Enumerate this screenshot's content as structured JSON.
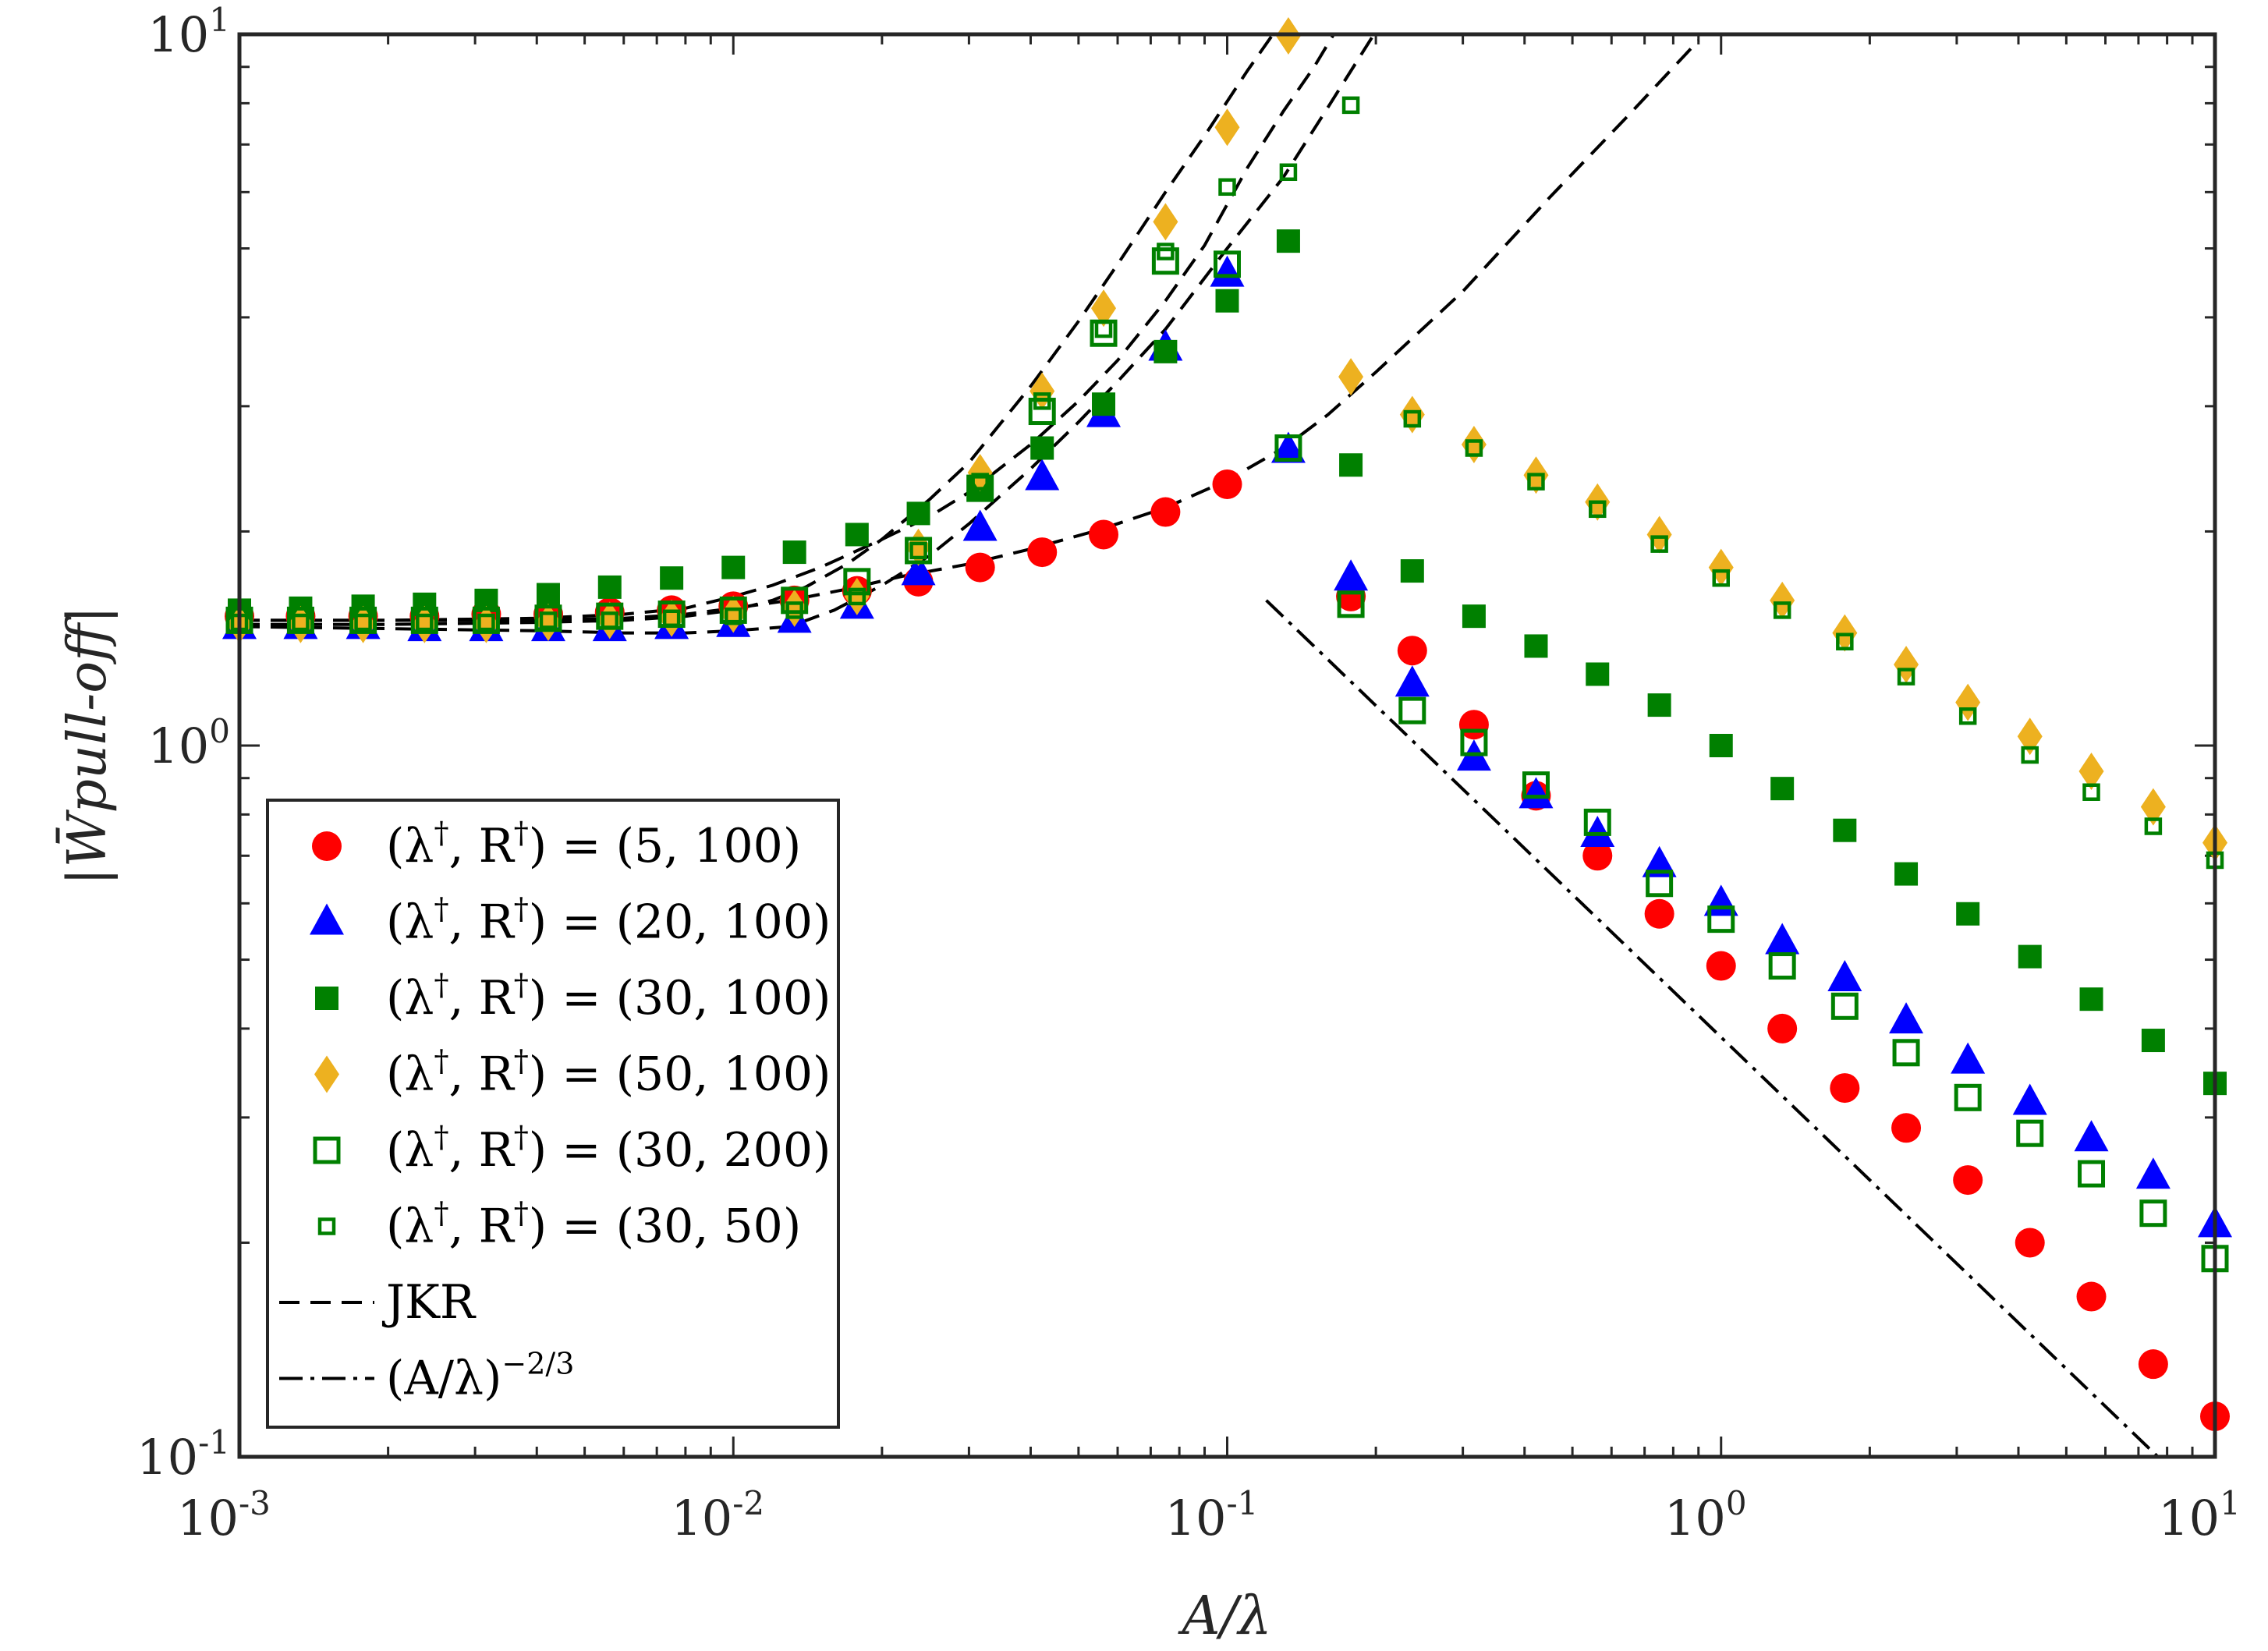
{
  "chart_data": {
    "type": "scatter",
    "title": "",
    "xlabel": "A/λ",
    "ylabel": "|W̄pull-off|",
    "xscale": "log",
    "yscale": "log",
    "xlim": [
      0.001,
      10
    ],
    "ylim": [
      0.1,
      10
    ],
    "grid": false,
    "legend_position": "bottom-left",
    "x_ticks": [
      {
        "value": 0.001,
        "base": "10",
        "exp": "-3"
      },
      {
        "value": 0.01,
        "base": "10",
        "exp": "-2"
      },
      {
        "value": 0.1,
        "base": "10",
        "exp": "-1"
      },
      {
        "value": 1,
        "base": "10",
        "exp": "0"
      },
      {
        "value": 10,
        "base": "10",
        "exp": "1"
      }
    ],
    "y_ticks": [
      {
        "value": 0.1,
        "base": "10",
        "exp": "-1"
      },
      {
        "value": 1,
        "base": "10",
        "exp": "0"
      },
      {
        "value": 10,
        "base": "10",
        "exp": "1"
      }
    ],
    "series": [
      {
        "name": "(λ†, R†) = (5, 100)",
        "label_pre": "(λ",
        "label_mid": ", R",
        "label_post": ") = (5, 100)",
        "marker": "circle",
        "color": "#ff0000",
        "x": [
          0.001,
          0.00133,
          0.00178,
          0.00237,
          0.00316,
          0.00422,
          0.00562,
          0.0075,
          0.01,
          0.0133,
          0.0178,
          0.0237,
          0.0316,
          0.0422,
          0.0562,
          0.075,
          0.1,
          0.178,
          0.237,
          0.316,
          0.422,
          0.562,
          0.75,
          1,
          1.33,
          1.78,
          2.37,
          3.16,
          4.22,
          5.62,
          7.5,
          10
        ],
        "y": [
          1.52,
          1.52,
          1.52,
          1.52,
          1.53,
          1.53,
          1.54,
          1.55,
          1.57,
          1.6,
          1.65,
          1.7,
          1.78,
          1.87,
          1.98,
          2.13,
          2.33,
          1.62,
          1.36,
          1.07,
          0.85,
          0.7,
          0.58,
          0.49,
          0.4,
          0.33,
          0.29,
          0.245,
          0.2,
          0.168,
          0.135,
          0.114
        ]
      },
      {
        "name": "(λ†, R†) = (20, 100)",
        "label_pre": "(λ",
        "label_mid": ", R",
        "label_post": ") = (20, 100)",
        "marker": "triangle",
        "color": "#0000ff",
        "x": [
          0.001,
          0.00133,
          0.00178,
          0.00237,
          0.00316,
          0.00422,
          0.00562,
          0.0075,
          0.01,
          0.0133,
          0.0178,
          0.0237,
          0.0316,
          0.0422,
          0.0562,
          0.075,
          0.1,
          0.133,
          0.178,
          0.237,
          0.316,
          0.422,
          0.562,
          0.75,
          1,
          1.33,
          1.78,
          2.37,
          3.16,
          4.22,
          5.62,
          7.5,
          10
        ],
        "y": [
          1.47,
          1.47,
          1.47,
          1.46,
          1.46,
          1.46,
          1.46,
          1.47,
          1.48,
          1.5,
          1.57,
          1.75,
          2.02,
          2.38,
          2.92,
          3.62,
          4.6,
          2.6,
          1.72,
          1.22,
          0.96,
          0.85,
          0.75,
          0.68,
          0.6,
          0.53,
          0.47,
          0.41,
          0.36,
          0.315,
          0.28,
          0.248,
          0.212
        ]
      },
      {
        "name": "(λ†, R†) = (30, 100)",
        "label_pre": "(λ",
        "label_mid": ", R",
        "label_post": ") = (30, 100)",
        "marker": "square",
        "color": "#008000",
        "x": [
          0.001,
          0.00133,
          0.00178,
          0.00237,
          0.00316,
          0.00422,
          0.00562,
          0.0075,
          0.01,
          0.0133,
          0.0178,
          0.0237,
          0.0316,
          0.0422,
          0.0562,
          0.075,
          0.1,
          0.133,
          0.178,
          0.237,
          0.316,
          0.422,
          0.562,
          0.75,
          1,
          1.33,
          1.78,
          2.37,
          3.16,
          4.22,
          5.62,
          7.5,
          10
        ],
        "y": [
          1.55,
          1.56,
          1.57,
          1.58,
          1.6,
          1.63,
          1.67,
          1.72,
          1.78,
          1.87,
          1.98,
          2.12,
          2.3,
          2.62,
          3.02,
          3.58,
          4.22,
          5.12,
          2.48,
          1.76,
          1.52,
          1.38,
          1.26,
          1.14,
          1.0,
          0.87,
          0.76,
          0.66,
          0.58,
          0.505,
          0.44,
          0.385,
          0.335
        ]
      },
      {
        "name": "(λ†, R†) = (50, 100)",
        "label_pre": "(λ",
        "label_mid": ", R",
        "label_post": ") = (50, 100)",
        "marker": "diamond",
        "color": "#edb120",
        "x": [
          0.001,
          0.00133,
          0.00178,
          0.00237,
          0.00316,
          0.00422,
          0.00562,
          0.0075,
          0.01,
          0.0133,
          0.0178,
          0.0237,
          0.0316,
          0.0422,
          0.0562,
          0.075,
          0.1,
          0.133,
          0.178,
          0.237,
          0.316,
          0.422,
          0.562,
          0.75,
          1,
          1.33,
          1.78,
          2.37,
          3.16,
          4.22,
          5.62,
          7.5,
          10
        ],
        "y": [
          1.48,
          1.48,
          1.48,
          1.48,
          1.48,
          1.49,
          1.5,
          1.51,
          1.53,
          1.56,
          1.62,
          1.9,
          2.42,
          3.15,
          4.12,
          5.45,
          7.4,
          9.95,
          3.3,
          2.92,
          2.65,
          2.4,
          2.2,
          1.98,
          1.78,
          1.6,
          1.44,
          1.3,
          1.15,
          1.03,
          0.92,
          0.82,
          0.73
        ]
      },
      {
        "name": "(λ†, R†) = (30, 200)",
        "label_pre": "(λ",
        "label_mid": ", R",
        "label_post": ") = (30, 200)",
        "marker": "open-square",
        "color": "#008000",
        "x": [
          0.001,
          0.00133,
          0.00178,
          0.00237,
          0.00316,
          0.00422,
          0.00562,
          0.0075,
          0.01,
          0.0133,
          0.0178,
          0.0237,
          0.0316,
          0.0422,
          0.0562,
          0.075,
          0.1,
          0.133,
          0.178,
          0.237,
          0.316,
          0.422,
          0.562,
          0.75,
          1,
          1.33,
          1.78,
          2.37,
          3.16,
          4.22,
          5.62,
          7.5,
          10
        ],
        "y": [
          1.5,
          1.5,
          1.5,
          1.5,
          1.5,
          1.51,
          1.52,
          1.53,
          1.55,
          1.6,
          1.7,
          1.88,
          2.3,
          2.95,
          3.8,
          4.8,
          4.75,
          2.62,
          1.58,
          1.12,
          1.01,
          0.88,
          0.78,
          0.64,
          0.57,
          0.49,
          0.43,
          0.37,
          0.32,
          0.285,
          0.25,
          0.22,
          0.19
        ]
      },
      {
        "name": "(λ†, R†) = (30, 50)",
        "label_pre": "(λ",
        "label_mid": ", R",
        "label_post": ") = (30, 50)",
        "marker": "small-open-square",
        "color": "#008000",
        "x": [
          0.001,
          0.00133,
          0.00178,
          0.00237,
          0.00316,
          0.00422,
          0.00562,
          0.0075,
          0.01,
          0.0133,
          0.0178,
          0.0237,
          0.0316,
          0.0422,
          0.0562,
          0.075,
          0.1,
          0.133,
          0.178,
          0.237,
          0.316,
          0.422,
          0.562,
          0.75,
          1,
          1.33,
          1.78,
          2.37,
          3.16,
          4.22,
          5.62,
          7.5,
          10
        ],
        "y": [
          1.49,
          1.49,
          1.49,
          1.49,
          1.49,
          1.5,
          1.5,
          1.51,
          1.52,
          1.55,
          1.62,
          1.88,
          2.35,
          3.05,
          3.85,
          4.95,
          6.1,
          6.4,
          7.95,
          2.88,
          2.62,
          2.35,
          2.15,
          1.92,
          1.72,
          1.55,
          1.4,
          1.25,
          1.1,
          0.97,
          0.86,
          0.77,
          0.69
        ]
      }
    ],
    "lines": [
      {
        "name": "JKR",
        "style": "dashed",
        "color": "#000000",
        "curves": [
          {
            "x": [
              0.001,
              0.002,
              0.004,
              0.006,
              0.008,
              0.01,
              0.013,
              0.017,
              0.022,
              0.03,
              0.04,
              0.055,
              0.075,
              0.1,
              0.13,
              0.16,
              0.2,
              0.3,
              0.45,
              0.65,
              0.9
            ],
            "y": [
              1.5,
              1.5,
              1.5,
              1.51,
              1.53,
              1.56,
              1.6,
              1.66,
              1.73,
              1.8,
              1.89,
              2.01,
              2.16,
              2.36,
              2.62,
              2.92,
              3.35,
              4.35,
              5.9,
              7.7,
              9.8
            ]
          },
          {
            "x": [
              0.001,
              0.002,
              0.004,
              0.006,
              0.008,
              0.01,
              0.012,
              0.015,
              0.02,
              0.025,
              0.03,
              0.04,
              0.05,
              0.06,
              0.075,
              0.09,
              0.11,
              0.13,
              0.15,
              0.17
            ],
            "y": [
              1.5,
              1.5,
              1.51,
              1.53,
              1.56,
              1.62,
              1.68,
              1.78,
              1.95,
              2.1,
              2.27,
              2.65,
              3.05,
              3.48,
              4.22,
              5.05,
              6.5,
              7.8,
              9.0,
              10.4
            ]
          },
          {
            "x": [
              0.001,
              0.002,
              0.004,
              0.006,
              0.008,
              0.01,
              0.013,
              0.016,
              0.02,
              0.025,
              0.03,
              0.04,
              0.05,
              0.06,
              0.075,
              0.1,
              0.13,
              0.16,
              0.2
            ],
            "y": [
              1.47,
              1.46,
              1.45,
              1.44,
              1.44,
              1.45,
              1.47,
              1.55,
              1.68,
              1.85,
              2.05,
              2.45,
              2.85,
              3.25,
              3.85,
              5.0,
              6.3,
              7.9,
              10.1
            ]
          },
          {
            "x": [
              0.001,
              0.002,
              0.004,
              0.006,
              0.008,
              0.01,
              0.012,
              0.014,
              0.017,
              0.02,
              0.025,
              0.03,
              0.04,
              0.05,
              0.06,
              0.075,
              0.09,
              0.11,
              0.125,
              0.13
            ],
            "y": [
              1.48,
              1.48,
              1.49,
              1.5,
              1.52,
              1.55,
              1.6,
              1.67,
              1.8,
              1.95,
              2.22,
              2.5,
              3.2,
              3.95,
              4.75,
              6.0,
              7.2,
              8.9,
              10.1,
              10.3
            ]
          }
        ]
      },
      {
        "name": "(A/λ)^(−2/3)",
        "style": "dash-dot",
        "color": "#000000",
        "label_base": "(A/λ)",
        "label_exp": "−2/3",
        "curves": [
          {
            "x": [
              0.12,
              7.9
            ],
            "y": [
              1.6,
              0.098
            ]
          }
        ]
      }
    ]
  }
}
